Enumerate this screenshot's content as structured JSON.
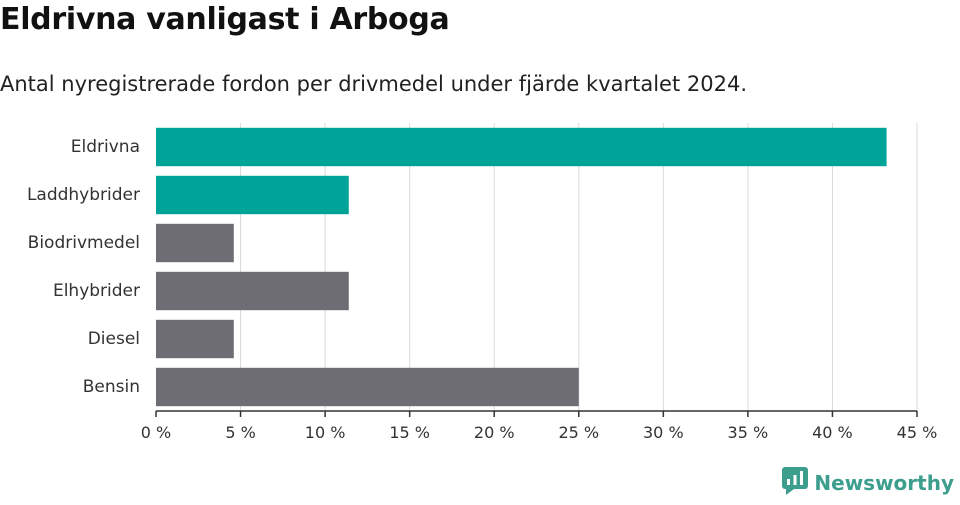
{
  "header": {
    "title": "Eldrivna vanligast i Arboga",
    "subtitle": "Antal nyregistrerade fordon per drivmedel under fjärde kvartalet 2024."
  },
  "brand": {
    "name": "Newsworthy",
    "icon": "newsworthy-logo-icon"
  },
  "colors": {
    "highlight": "#00a398",
    "default": "#6e6d73",
    "grid": "#d9d9d9",
    "axis": "#333333"
  },
  "chart_data": {
    "type": "bar",
    "orientation": "horizontal",
    "categories": [
      "Eldrivna",
      "Laddhybrider",
      "Biodrivmedel",
      "Elhybrider",
      "Diesel",
      "Bensin"
    ],
    "values": [
      43.2,
      11.4,
      4.6,
      11.4,
      4.6,
      25.0
    ],
    "highlighted": [
      true,
      true,
      false,
      false,
      false,
      false
    ],
    "xlim": [
      0,
      45
    ],
    "x_ticks": [
      0,
      5,
      10,
      15,
      20,
      25,
      30,
      35,
      40,
      45
    ],
    "x_tick_labels": [
      "0 %",
      "5 %",
      "10 %",
      "15 %",
      "20 %",
      "25 %",
      "30 %",
      "35 %",
      "40 %",
      "45 %"
    ],
    "grid": true,
    "xlabel": "",
    "ylabel": ""
  }
}
